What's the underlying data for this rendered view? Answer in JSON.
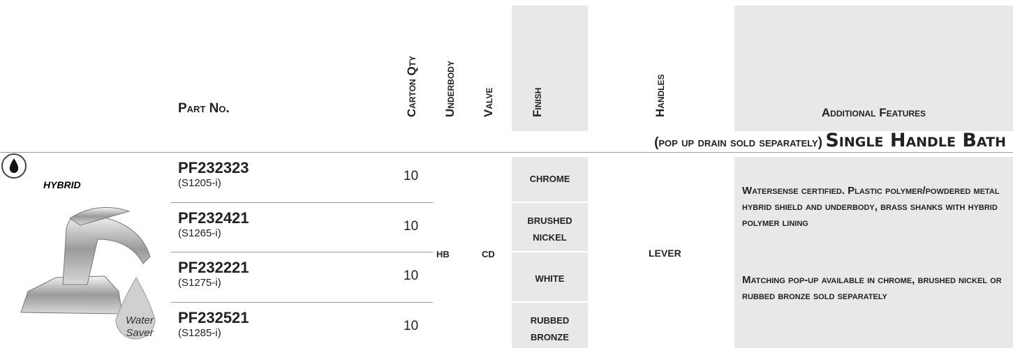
{
  "header": {
    "part_no": "Part No.",
    "carton_qty": "Carton Qty",
    "underbody": "Underbody",
    "valve": "Valve",
    "finish": "Finish",
    "handles": "Handles",
    "features": "Additional Features"
  },
  "section": {
    "note": "(pop up drain sold separately)",
    "title": "Single Handle Bath"
  },
  "image": {
    "badge": "HYBRID",
    "drop": [
      "Water",
      "Saver"
    ]
  },
  "table": {
    "rows": [
      {
        "part": "PF232323",
        "alt": "(S1205-i)",
        "qty": 10,
        "finish": "CHROME"
      },
      {
        "part": "PF232421",
        "alt": "(S1265-i)",
        "qty": 10,
        "finish": "BRUSHED NICKEL"
      },
      {
        "part": "PF232221",
        "alt": "(S1275-i)",
        "qty": 10,
        "finish": "WHITE"
      },
      {
        "part": "PF232521",
        "alt": "(S1285-i)",
        "qty": 10,
        "finish": "RUBBED BRONZE"
      }
    ],
    "underbody": "HB",
    "valve": "CD",
    "handles": "LEVER",
    "features": [
      "Watersense certified. Plastic polymer/powdered metal hybrid shield and underbody, brass shanks with hybrid polymer lining",
      "Matching pop-up available in chrome, brushed nickel or rubbed bronze sold separately"
    ]
  }
}
